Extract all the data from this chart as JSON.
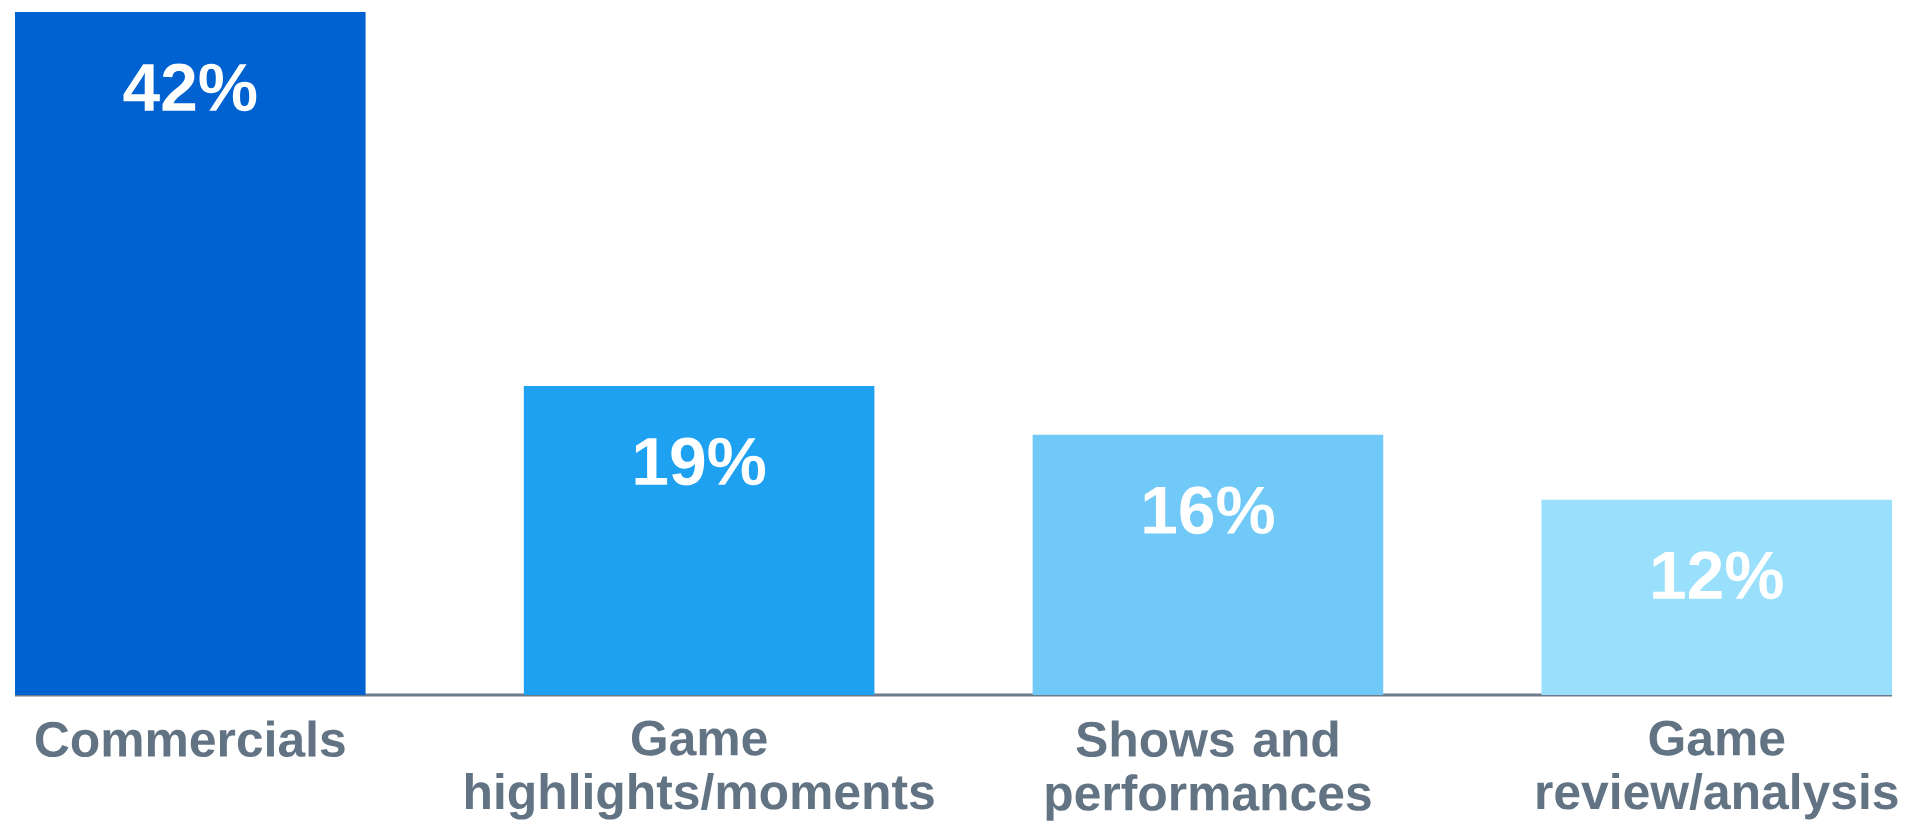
{
  "chart_data": {
    "type": "bar",
    "categories": [
      "Commercials",
      "Game highlights/moments",
      "Shows and performances",
      "Game review/analysis"
    ],
    "values": [
      42,
      19,
      16,
      12
    ],
    "value_labels": [
      "42%",
      "19%",
      "16%",
      "12%"
    ],
    "colors": [
      "#0062d1",
      "#1fa1f2",
      "#70c9f7",
      "#9ae0fd"
    ]
  }
}
